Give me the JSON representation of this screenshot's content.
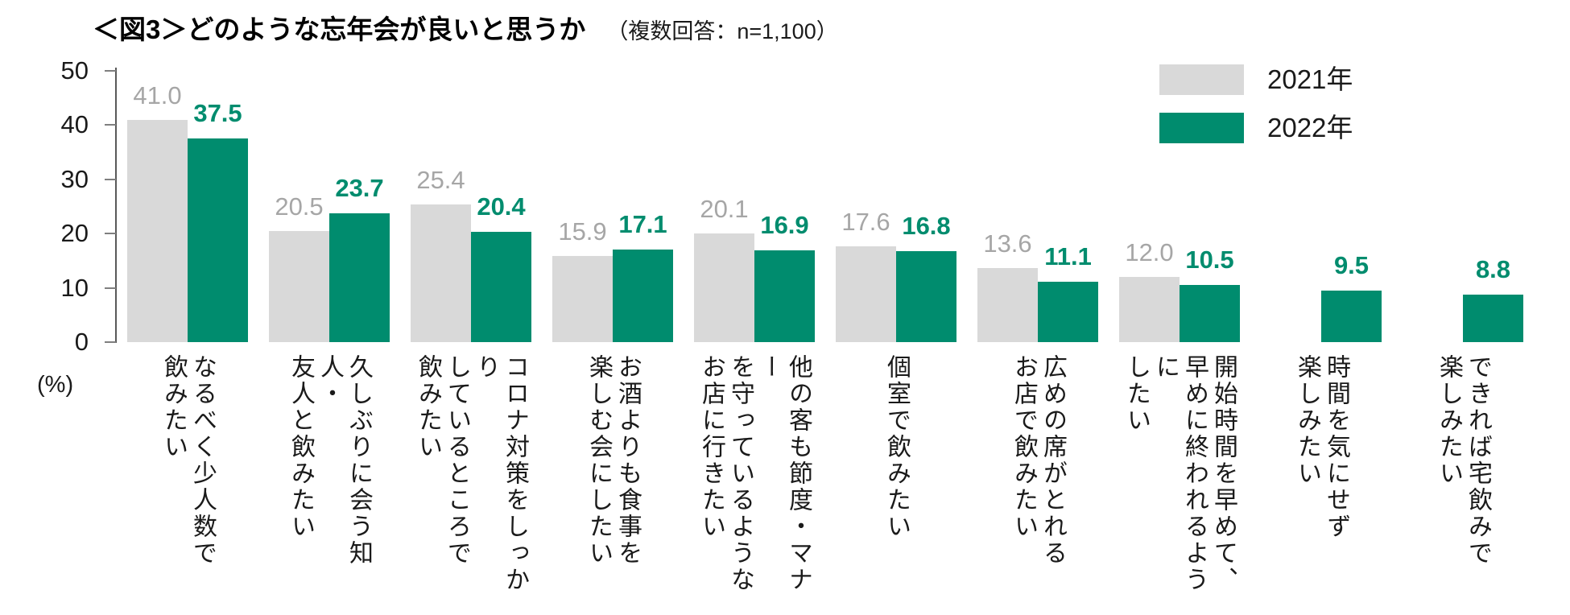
{
  "title": {
    "main": "＜図3＞どのような忘年会が良いと思うか",
    "note": "（複数回答：n=1,100）"
  },
  "legend": [
    {
      "label": "2021年",
      "color": "#d9d9d9"
    },
    {
      "label": "2022年",
      "color": "#008c6e"
    }
  ],
  "colors": {
    "bar_2021": "#d9d9d9",
    "bar_2022": "#008c6e",
    "value_label_2021": "#a6a6a6",
    "value_label_2022": "#008c6e"
  },
  "chart_data": {
    "type": "bar",
    "title": "＜図3＞どのような忘年会が良いと思うか（複数回答：n=1,100）",
    "ylabel": "(%)",
    "ylim": [
      0,
      50
    ],
    "yticks": [
      0,
      10,
      20,
      30,
      40,
      50
    ],
    "grid": false,
    "legend_position": "top-right",
    "categories": [
      {
        "label": "なるべく少人数で飲みたい",
        "lines": [
          "なるべく少人数で",
          "飲みたい"
        ]
      },
      {
        "label": "久しぶりに会う知人・友人と飲みたい",
        "lines": [
          "久しぶりに会う知人・",
          "友人と飲みたい"
        ]
      },
      {
        "label": "コロナ対策をしっかりしているところで飲みたい",
        "lines": [
          "コロナ対策をしっかり",
          "しているところで",
          "飲みたい"
        ]
      },
      {
        "label": "お酒よりも食事を楽しむ会にしたい",
        "lines": [
          "お酒よりも食事を",
          "楽しむ会にしたい"
        ]
      },
      {
        "label": "他の客も節度・マナーを守っているようなお店に行きたい",
        "lines": [
          "他の客も節度・マナー",
          "を守っているような",
          "お店に行きたい"
        ]
      },
      {
        "label": "個室で飲みたい",
        "lines": [
          "個室で飲みたい"
        ]
      },
      {
        "label": "広めの席がとれるお店で飲みたい",
        "lines": [
          "広めの席がとれる",
          "お店で飲みたい"
        ]
      },
      {
        "label": "開始時間を早めて、早めに終われるようにしたい",
        "lines": [
          "開始時間を早めて、",
          "早めに終われるように",
          "したい"
        ]
      },
      {
        "label": "時間を気にせず楽しみたい",
        "lines": [
          "時間を気にせず",
          "楽しみたい"
        ]
      },
      {
        "label": "できれば宅飲みで楽しみたい",
        "lines": [
          "できれば宅飲みで",
          "楽しみたい"
        ]
      }
    ],
    "series": [
      {
        "name": "2021年",
        "color": "#d9d9d9",
        "values": [
          41.0,
          20.5,
          25.4,
          15.9,
          20.1,
          17.6,
          13.6,
          12.0,
          null,
          null
        ]
      },
      {
        "name": "2022年",
        "color": "#008c6e",
        "values": [
          37.5,
          23.7,
          20.4,
          17.1,
          16.9,
          16.8,
          11.1,
          10.5,
          9.5,
          8.8
        ]
      }
    ]
  }
}
